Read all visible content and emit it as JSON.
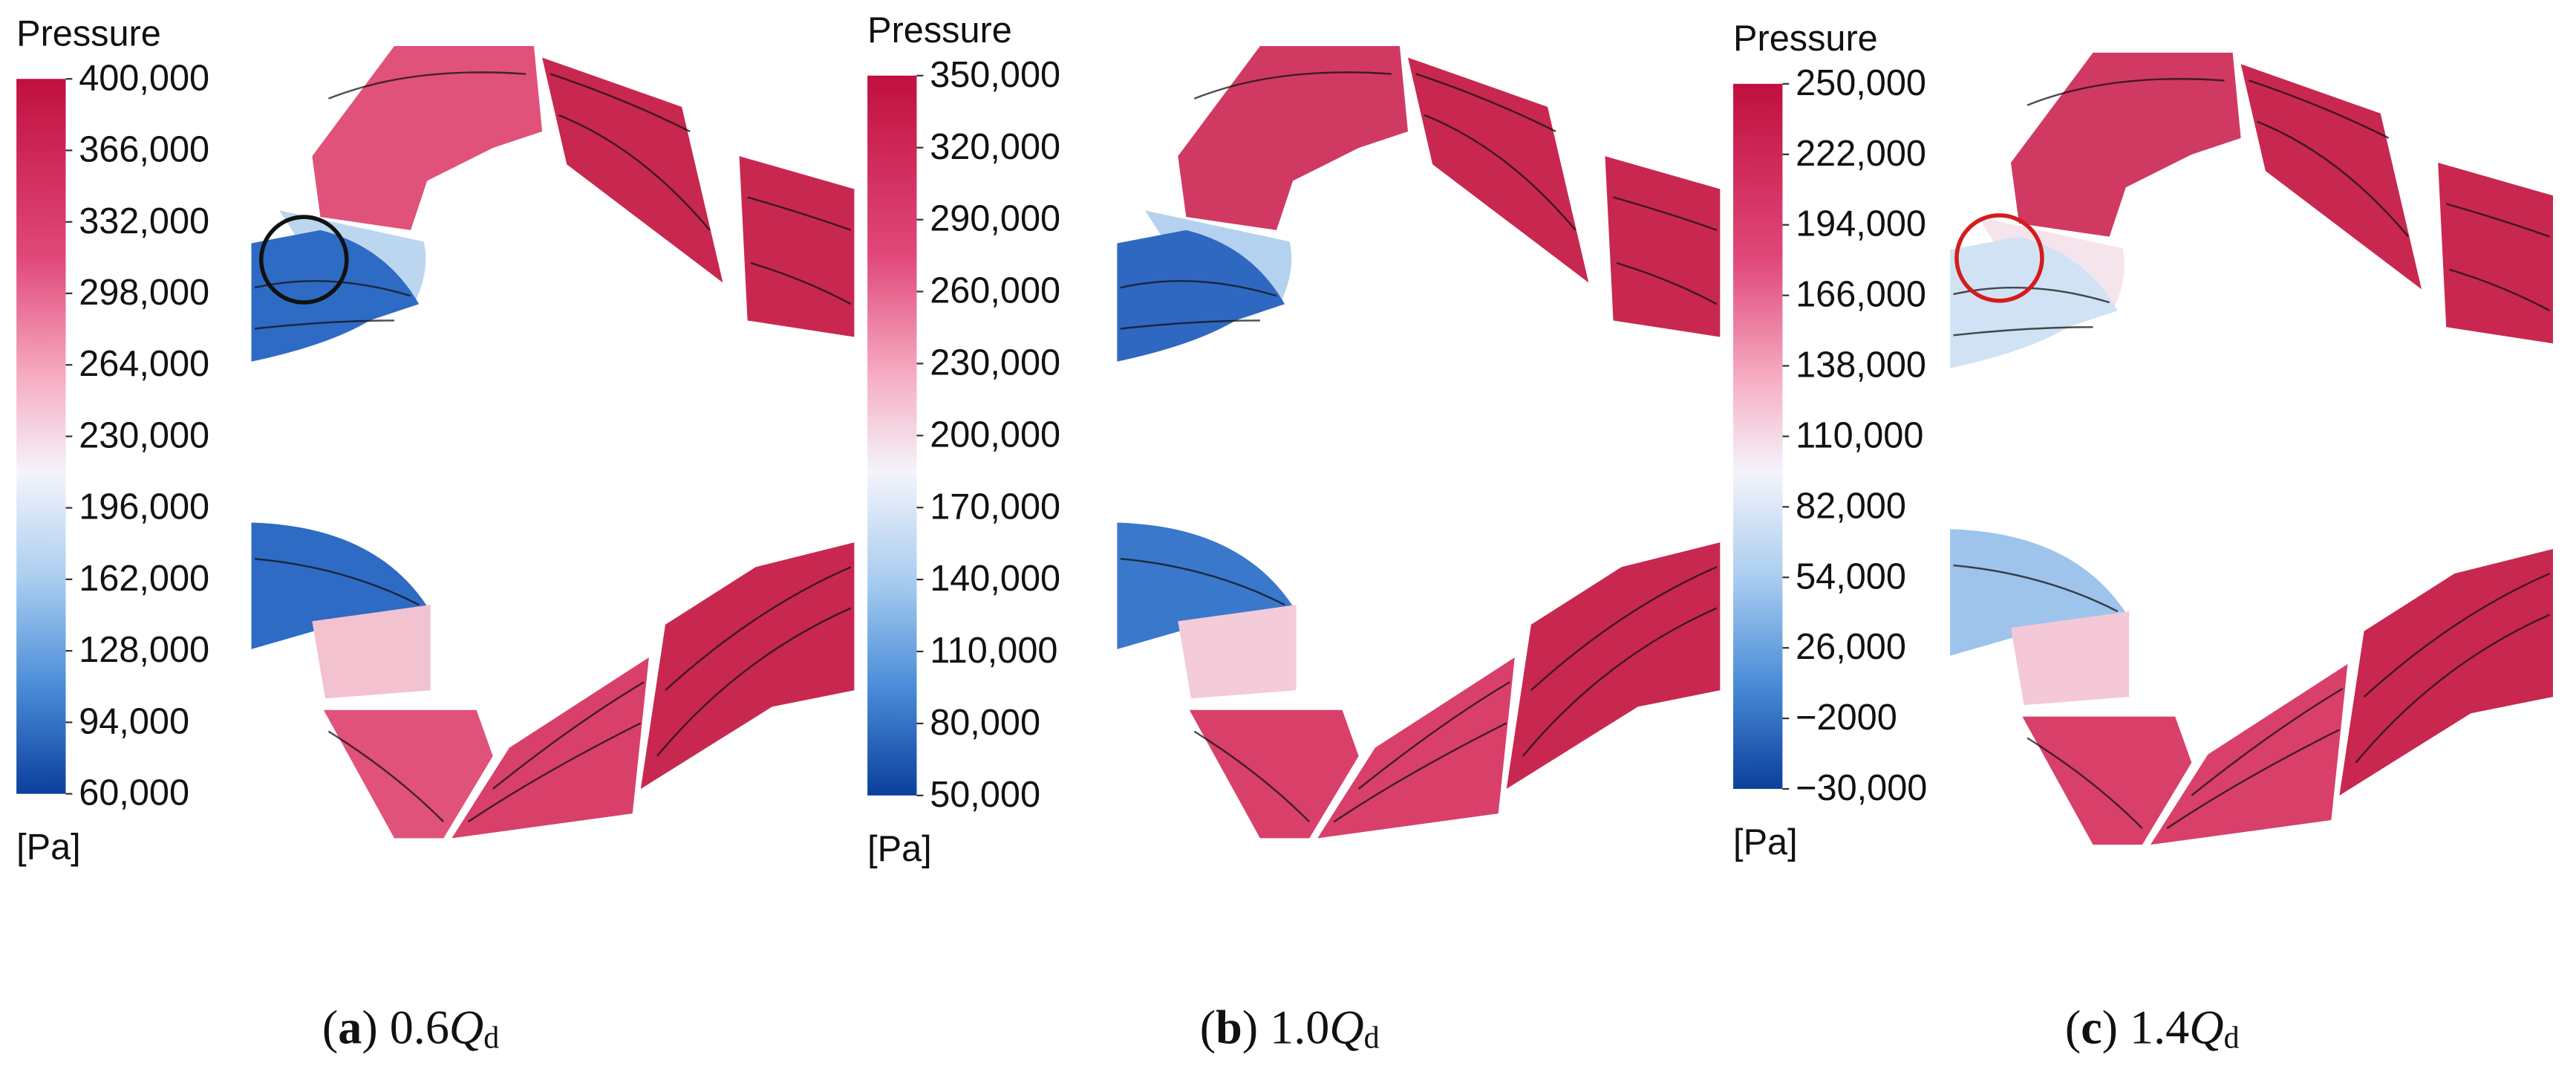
{
  "panels": [
    {
      "colorbar": {
        "title": "Pressure",
        "unit": "[Pa]",
        "lim": [
          60000,
          400000
        ],
        "ticks": [
          {
            "value": 400000,
            "label": "400,000"
          },
          {
            "value": 366000,
            "label": "366,000"
          },
          {
            "value": 332000,
            "label": "332,000"
          },
          {
            "value": 298000,
            "label": "298,000"
          },
          {
            "value": 264000,
            "label": "264,000"
          },
          {
            "value": 230000,
            "label": "230,000"
          },
          {
            "value": 196000,
            "label": "196,000"
          },
          {
            "value": 162000,
            "label": "162,000"
          },
          {
            "value": 128000,
            "label": "128,000"
          },
          {
            "value": 94000,
            "label": "94,000"
          },
          {
            "value": 60000,
            "label": "60,000"
          }
        ]
      },
      "caption": [
        {
          "text": "("
        },
        {
          "text": "a",
          "bold": true
        },
        {
          "text": ") 0.6"
        },
        {
          "text": "Q",
          "italic": true
        },
        {
          "text": "d",
          "sub": true
        }
      ]
    },
    {
      "colorbar": {
        "title": "Pressure",
        "unit": "[Pa]",
        "lim": [
          50000,
          350000
        ],
        "ticks": [
          {
            "value": 350000,
            "label": "350,000"
          },
          {
            "value": 320000,
            "label": "320,000"
          },
          {
            "value": 290000,
            "label": "290,000"
          },
          {
            "value": 260000,
            "label": "260,000"
          },
          {
            "value": 230000,
            "label": "230,000"
          },
          {
            "value": 200000,
            "label": "200,000"
          },
          {
            "value": 170000,
            "label": "170,000"
          },
          {
            "value": 140000,
            "label": "140,000"
          },
          {
            "value": 110000,
            "label": "110,000"
          },
          {
            "value": 80000,
            "label": "80,000"
          },
          {
            "value": 50000,
            "label": "50,000"
          }
        ]
      },
      "caption": [
        {
          "text": "("
        },
        {
          "text": "b",
          "bold": true
        },
        {
          "text": ") 1.0"
        },
        {
          "text": "Q",
          "italic": true
        },
        {
          "text": "d",
          "sub": true
        }
      ]
    },
    {
      "colorbar": {
        "title": "Pressure",
        "unit": "[Pa]",
        "lim": [
          -30000,
          250000
        ],
        "ticks": [
          {
            "value": 250000,
            "label": "250,000"
          },
          {
            "value": 222000,
            "label": "222,000"
          },
          {
            "value": 194000,
            "label": "194,000"
          },
          {
            "value": 166000,
            "label": "166,000"
          },
          {
            "value": 138000,
            "label": "138,000"
          },
          {
            "value": 110000,
            "label": "110,000"
          },
          {
            "value": 82000,
            "label": "82,000"
          },
          {
            "value": 54000,
            "label": "54,000"
          },
          {
            "value": 26000,
            "label": "26,000"
          },
          {
            "value": -2000,
            "label": "−2000"
          },
          {
            "value": -30000,
            "label": "−30,000"
          }
        ]
      },
      "caption": [
        {
          "text": "("
        },
        {
          "text": "c",
          "bold": true
        },
        {
          "text": ") 1.4"
        },
        {
          "text": "Q",
          "italic": true
        },
        {
          "text": "d",
          "sub": true
        }
      ]
    }
  ]
}
